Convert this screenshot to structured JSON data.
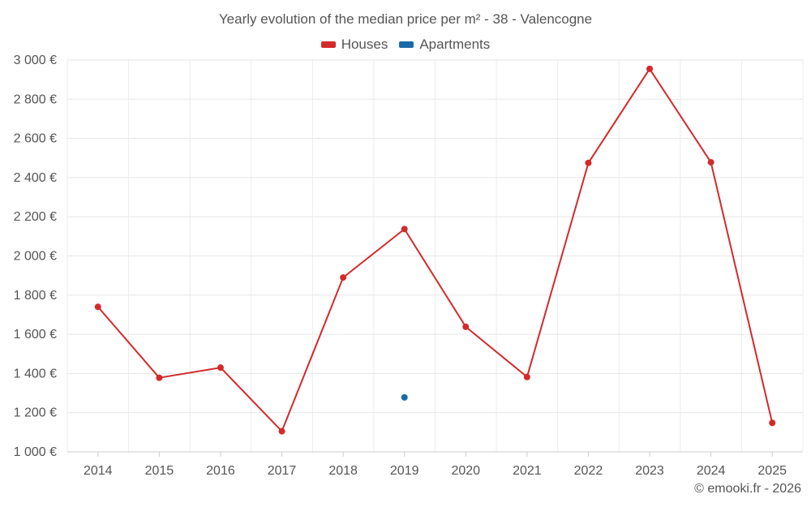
{
  "chart_data": {
    "type": "line",
    "title": "Yearly evolution of the median price per m² - 38 - Valencogne",
    "xlabel": "",
    "ylabel": "",
    "categories": [
      "2014",
      "2015",
      "2016",
      "2017",
      "2018",
      "2019",
      "2020",
      "2021",
      "2022",
      "2023",
      "2024",
      "2025"
    ],
    "ylim": [
      1000,
      3000
    ],
    "yticks": [
      1000,
      1200,
      1400,
      1600,
      1800,
      2000,
      2200,
      2400,
      2600,
      2800,
      3000
    ],
    "ytick_labels": [
      "1 000 €",
      "1 200 €",
      "1 400 €",
      "1 600 €",
      "1 800 €",
      "2 000 €",
      "2 200 €",
      "2 400 €",
      "2 600 €",
      "2 800 €",
      "3 000 €"
    ],
    "grid": true,
    "legend_position": "top-center",
    "series": [
      {
        "name": "Houses",
        "color": "#d32a2a",
        "values": [
          1740,
          1378,
          1430,
          1105,
          1890,
          2137,
          1638,
          1382,
          2475,
          2955,
          2478,
          1148
        ]
      },
      {
        "name": "Apartments",
        "color": "#1a6aa8",
        "values": [
          null,
          null,
          null,
          null,
          null,
          1278,
          null,
          null,
          null,
          null,
          null,
          null
        ]
      }
    ]
  },
  "credit": "© emooki.fr - 2026"
}
